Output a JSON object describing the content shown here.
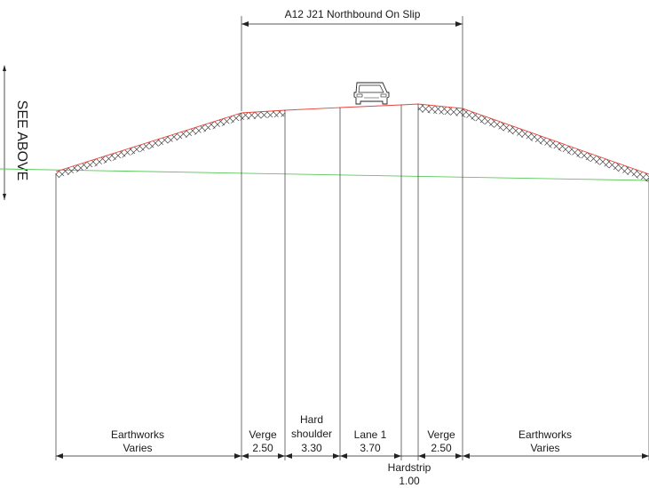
{
  "title": "A12 J21 Northbound On Slip",
  "side_note": "SEE ABOVE",
  "colors": {
    "finished_surface": "#e8453c",
    "existing_ground": "#5cc75c",
    "lines": "#222222",
    "hatch": "#444444"
  },
  "icons": {
    "vehicle": "car-front-icon",
    "hatch": "earthworks-hatch"
  },
  "segments": [
    {
      "name": "Earthworks",
      "value": "Varies"
    },
    {
      "name": "Verge",
      "value": "2.50"
    },
    {
      "name": "Hard shoulder",
      "value": "3.30"
    },
    {
      "name": "Lane 1",
      "value": "3.70"
    },
    {
      "name": "Hardstrip",
      "value": "1.00"
    },
    {
      "name": "Verge",
      "value": "2.50"
    },
    {
      "name": "Earthworks",
      "value": "Varies"
    }
  ],
  "labels": {
    "seg0_name": "Earthworks",
    "seg0_value": "Varies",
    "seg1_name": "Verge",
    "seg1_value": "2.50",
    "seg2_name_line1": "Hard",
    "seg2_name_line2": "shoulder",
    "seg2_value": "3.30",
    "seg3_name": "Lane 1",
    "seg3_value": "3.70",
    "seg4_name": "Hardstrip",
    "seg4_value": "1.00",
    "seg5_name": "Verge",
    "seg5_value": "2.50",
    "seg6_name": "Earthworks",
    "seg6_value": "Varies"
  }
}
